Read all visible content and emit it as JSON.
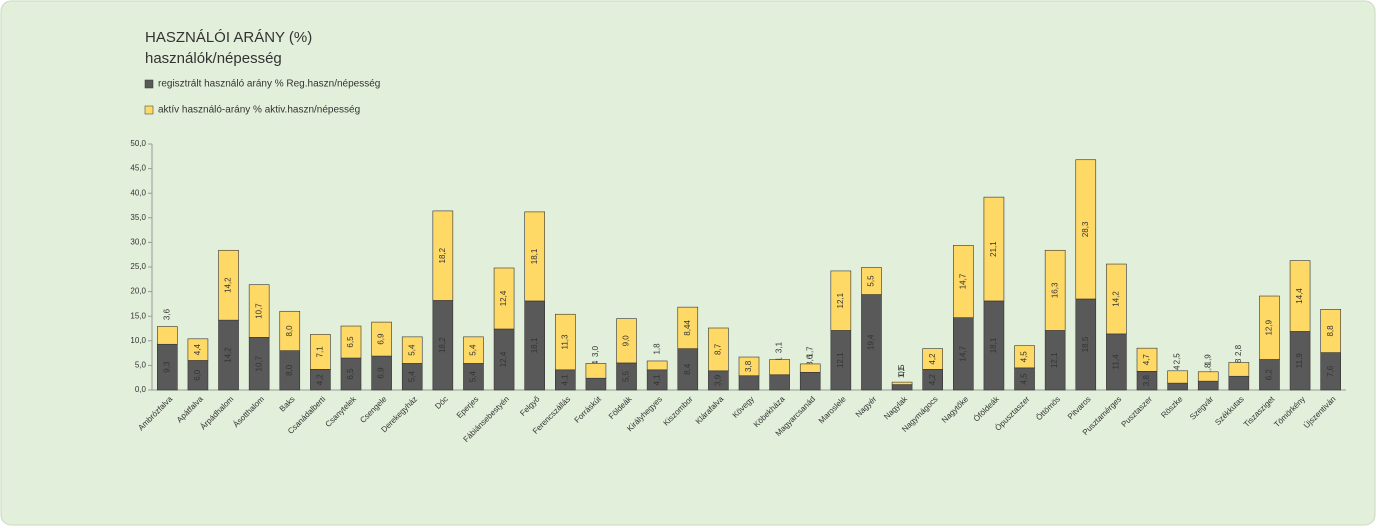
{
  "chart_data": {
    "type": "stacked_bar",
    "title": "HASZNÁLÓI ARÁNY  (%)",
    "subtitle": "használók/népesség",
    "categories": [
      "Ambrózfalva",
      "Apátfalva",
      "Árpádhalom",
      "Ásotthalom",
      "Baks",
      "Csanádalberti",
      "Csanytelek",
      "Csengele",
      "Derekegyház",
      "Dóc",
      "Eperjes",
      "Fábiánsebestyén",
      "Felgyő",
      "Ferencszállás",
      "Forráskút",
      "Földeák",
      "Királyhegyes",
      "Kiszombor",
      "Klárafalva",
      "Kövegy",
      "Köbekháza",
      "Magyarcsanád",
      "Maroslele",
      "Nagyér",
      "Nagylak",
      "Nagymágocs",
      "Nagytőke",
      "Óföldeák",
      "Ópusztaszer",
      "Öttömös",
      "Pitvaros",
      "Pusztamérges",
      "Pusztaszer",
      "Röszke",
      "Szegvár",
      "Székkutas",
      "Tiszasziget",
      "Tömörkény",
      "Újszentiván"
    ],
    "series": [
      {
        "name": "regisztrált használó arány % Reg.haszn/népesség",
        "color": "#595959",
        "values": [
          9.3,
          6.0,
          14.2,
          10.7,
          8.0,
          4.2,
          6.5,
          6.9,
          5.4,
          18.2,
          5.4,
          12.4,
          18.1,
          4.1,
          2.4,
          5.5,
          4.1,
          8.4,
          3.9,
          2.9,
          3.1,
          3.6,
          12.1,
          19.4,
          1.1,
          4.2,
          14.7,
          18.1,
          4.5,
          12.1,
          18.5,
          11.4,
          3.8,
          1.4,
          1.8,
          2.8,
          6.2,
          11.9,
          7.6
        ],
        "value_labels": [
          "9,3",
          "6,0",
          "14,2",
          "10,7",
          "8,0",
          "4,2",
          "6,5",
          "6,9",
          "5,4",
          "18,2",
          "5,4",
          "12,4",
          "18,1",
          "4,1",
          "2,4",
          "5,5",
          "4,1",
          "8,4",
          "3,9",
          "2,9",
          "3,1",
          "3,6",
          "12,1",
          "19,4",
          "1,1",
          "4,2",
          "14,7",
          "18,1",
          "4,5",
          "12,1",
          "18,5",
          "11,4",
          "3,8",
          "1,4",
          "1,8",
          "2,8",
          "6,2",
          "11,9",
          "7,6"
        ]
      },
      {
        "name": "aktív használó-arány % aktiv.haszn/népesség",
        "color": "#ffd966",
        "values": [
          3.6,
          4.4,
          14.2,
          10.7,
          8.0,
          7.1,
          6.5,
          6.9,
          5.4,
          18.2,
          5.4,
          12.4,
          18.1,
          11.3,
          3.0,
          9.0,
          1.8,
          8.44,
          8.7,
          3.8,
          3.1,
          1.7,
          12.1,
          5.5,
          0.5,
          4.2,
          14.7,
          21.1,
          4.5,
          16.3,
          28.3,
          14.2,
          4.7,
          2.5,
          1.9,
          2.8,
          12.9,
          14.4,
          8.8
        ],
        "value_labels": [
          "3,6",
          "4,4",
          "14,2",
          "10,7",
          "8,0",
          "7,1",
          "6,5",
          "6,9",
          "5,4",
          "18,2",
          "5,4",
          "12,4",
          "18,1",
          "11,3",
          "3,0",
          "9,0",
          "1,8",
          "8,44",
          "8,7",
          "3,8",
          "3,1",
          "1,7",
          "12,1",
          "5,5",
          "0,5",
          "4,2",
          "14,7",
          "21,1",
          "4,5",
          "16,3",
          "28,3",
          "14,2",
          "4,7",
          "2,5",
          "1,9",
          "2,8",
          "12,9",
          "14,4",
          "8,8"
        ]
      }
    ],
    "ylim": [
      0,
      50
    ],
    "yticks": [
      {
        "value": 0,
        "label": "0,0"
      },
      {
        "value": 5,
        "label": "5,0"
      },
      {
        "value": 10,
        "label": "10,0"
      },
      {
        "value": 15,
        "label": "15,0"
      },
      {
        "value": 20,
        "label": "20,0"
      },
      {
        "value": 25,
        "label": "25,0"
      },
      {
        "value": 30,
        "label": "30,0"
      },
      {
        "value": 35,
        "label": "35,0"
      },
      {
        "value": 40,
        "label": "40,0"
      },
      {
        "value": 45,
        "label": "45,0"
      },
      {
        "value": 50,
        "label": "50,0"
      }
    ],
    "grid": false
  }
}
